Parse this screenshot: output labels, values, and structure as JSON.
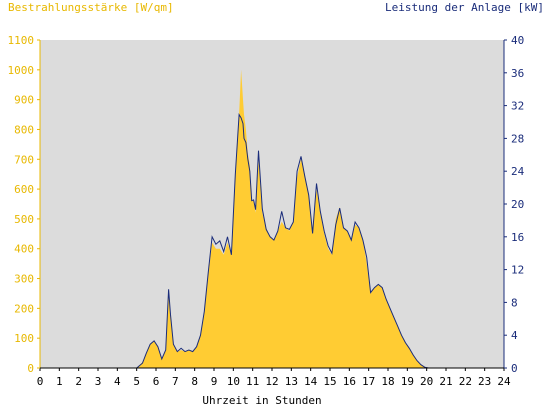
{
  "header": {
    "left_title": "Bestrahlungsstärke [W/qm]",
    "right_title": "Leistung der Anlage [kW]"
  },
  "colors": {
    "plot_bg": "#dcdcdc",
    "irradiance_fill": "#ffcc33",
    "power_line": "#1a2c7a",
    "left_axis_text": "#e8b800",
    "right_axis_text": "#1a2c7a",
    "x_axis_text": "#000000"
  },
  "chart_data": {
    "type": "area",
    "xlabel": "Uhrzeit in Stunden",
    "ylabel_left": "Bestrahlungsstärke [W/qm]",
    "ylabel_right": "Leistung der Anlage [kW]",
    "xlim": [
      0,
      24
    ],
    "ylim_left": [
      0,
      1100
    ],
    "ylim_right": [
      0,
      40
    ],
    "x_ticks": [
      "0",
      "1",
      "2",
      "3",
      "4",
      "5",
      "6",
      "7",
      "8",
      "9",
      "10",
      "11",
      "12",
      "13",
      "14",
      "15",
      "16",
      "17",
      "18",
      "19",
      "20",
      "21",
      "22",
      "23",
      "24"
    ],
    "y_ticks_left": [
      "0",
      "100",
      "200",
      "300",
      "400",
      "500",
      "600",
      "700",
      "800",
      "900",
      "1000",
      "1100"
    ],
    "y_ticks_right": [
      "0",
      "4",
      "8",
      "12",
      "16",
      "20",
      "24",
      "28",
      "32",
      "36",
      "40"
    ],
    "grid": false,
    "series": [
      {
        "axis": "left",
        "kind": "area",
        "x": [
          0,
          5.0,
          5.3,
          5.5,
          5.7,
          5.9,
          6.1,
          6.3,
          6.5,
          6.65,
          6.75,
          6.9,
          7.1,
          7.3,
          7.5,
          7.7,
          7.9,
          8.1,
          8.3,
          8.5,
          8.7,
          8.9,
          9.1,
          9.3,
          9.5,
          9.7,
          9.9,
          10.1,
          10.3,
          10.4,
          10.5,
          10.55,
          10.65,
          10.75,
          10.85,
          10.95,
          11.05,
          11.15,
          11.3,
          11.5,
          11.7,
          11.9,
          12.1,
          12.3,
          12.5,
          12.7,
          12.9,
          13.1,
          13.3,
          13.5,
          13.7,
          13.9,
          14.1,
          14.3,
          14.5,
          14.7,
          14.9,
          15.1,
          15.3,
          15.5,
          15.7,
          15.9,
          16.1,
          16.3,
          16.5,
          16.7,
          16.9,
          17.1,
          17.3,
          17.5,
          17.7,
          17.9,
          18.1,
          18.3,
          18.5,
          18.7,
          18.9,
          19.1,
          19.3,
          19.5,
          19.7,
          19.9,
          20.1,
          20.3,
          20.5,
          20.7,
          24
        ],
        "y": [
          0,
          0,
          20,
          50,
          80,
          90,
          70,
          30,
          60,
          250,
          180,
          80,
          55,
          60,
          55,
          60,
          55,
          70,
          110,
          190,
          310,
          420,
          400,
          400,
          380,
          420,
          380,
          650,
          850,
          1000,
          900,
          850,
          800,
          720,
          680,
          560,
          560,
          520,
          700,
          520,
          470,
          440,
          430,
          460,
          490,
          470,
          460,
          490,
          640,
          700,
          650,
          580,
          450,
          600,
          520,
          450,
          400,
          380,
          500,
          540,
          470,
          460,
          430,
          480,
          470,
          430,
          350,
          250,
          270,
          280,
          270,
          230,
          200,
          170,
          140,
          110,
          85,
          65,
          45,
          25,
          10,
          4,
          0,
          0,
          0,
          0,
          0
        ]
      },
      {
        "axis": "right",
        "kind": "line",
        "x": [
          0,
          5.0,
          5.3,
          5.5,
          5.7,
          5.9,
          6.1,
          6.3,
          6.5,
          6.65,
          6.75,
          6.9,
          7.1,
          7.3,
          7.5,
          7.7,
          7.9,
          8.1,
          8.3,
          8.5,
          8.7,
          8.9,
          9.1,
          9.3,
          9.5,
          9.7,
          9.9,
          10.1,
          10.3,
          10.4,
          10.5,
          10.55,
          10.65,
          10.75,
          10.85,
          10.95,
          11.05,
          11.15,
          11.3,
          11.5,
          11.7,
          11.9,
          12.1,
          12.3,
          12.5,
          12.7,
          12.9,
          13.1,
          13.3,
          13.5,
          13.7,
          13.9,
          14.1,
          14.3,
          14.5,
          14.7,
          14.9,
          15.1,
          15.3,
          15.5,
          15.7,
          15.9,
          16.1,
          16.3,
          16.5,
          16.7,
          16.9,
          17.1,
          17.3,
          17.5,
          17.7,
          17.9,
          18.1,
          18.3,
          18.5,
          18.7,
          18.9,
          19.1,
          19.3,
          19.5,
          19.7,
          19.9,
          20.1,
          20.3,
          20.5,
          20.7,
          24
        ],
        "y": [
          0,
          0,
          0.6,
          1.8,
          2.9,
          3.3,
          2.6,
          1.1,
          2.2,
          9.6,
          6.5,
          2.9,
          2.0,
          2.4,
          2.0,
          2.2,
          2.0,
          2.6,
          4.0,
          6.9,
          11.6,
          16.0,
          15.1,
          15.5,
          14.2,
          16.0,
          13.8,
          23.6,
          30.9,
          30.5,
          29.8,
          28.0,
          27.5,
          25.5,
          24.0,
          20.4,
          20.5,
          19.3,
          26.5,
          19.4,
          16.9,
          16.0,
          15.6,
          16.7,
          19.1,
          17.1,
          16.9,
          17.8,
          24.0,
          25.8,
          23.3,
          21.1,
          16.4,
          22.5,
          19.1,
          16.7,
          14.9,
          14.0,
          17.5,
          19.5,
          17.1,
          16.7,
          15.6,
          17.8,
          17.1,
          15.6,
          13.5,
          9.2,
          9.8,
          10.2,
          9.8,
          8.4,
          7.3,
          6.2,
          5.1,
          4.0,
          3.1,
          2.4,
          1.6,
          0.9,
          0.4,
          0.1,
          0,
          0,
          0,
          0,
          0
        ]
      }
    ]
  }
}
